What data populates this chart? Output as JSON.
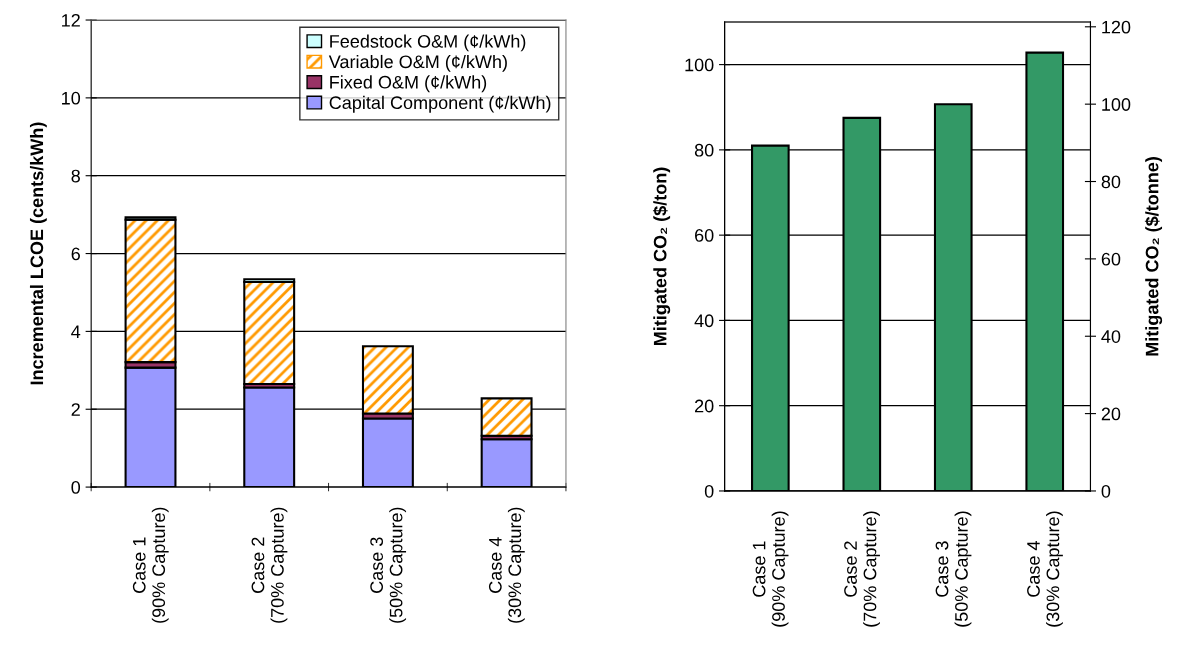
{
  "chart_data": [
    {
      "type": "bar",
      "stacked": true,
      "ylabel": "Incremental LCOE (cents/kWh)",
      "categories": [
        "Case 1\n(90% Capture)",
        "Case 2\n(70% Capture)",
        "Case 3\n(50% Capture)",
        "Case 4\n(30% Capture)"
      ],
      "series": [
        {
          "name": "Capital Component (¢/kWh)",
          "color": "#9999ff",
          "values": [
            3.07,
            2.56,
            1.76,
            1.23
          ]
        },
        {
          "name": "Fixed O&M (¢/kWh)",
          "color": "#993366",
          "values": [
            0.14,
            0.09,
            0.13,
            0.09
          ]
        },
        {
          "name": "Variable O&M (¢/kWh)",
          "color": "#ff9900",
          "values": [
            3.66,
            2.62,
            1.73,
            0.96
          ]
        },
        {
          "name": "Feedstock O&M (¢/kWh)",
          "color": "#ccffff",
          "values": [
            0.06,
            0.07,
            null,
            null
          ]
        }
      ],
      "ylim": [
        0,
        12
      ],
      "yticks": [
        0,
        2,
        4,
        6,
        8,
        10,
        12
      ],
      "grid": "y",
      "legend": "top right"
    },
    {
      "type": "bar",
      "ylabel": "Mitigated CO₂ ($/ton)",
      "y2label": "Mitigated CO₂ ($/tonne)",
      "categories": [
        "Case 1\n(90% Capture)",
        "Case 2\n(70% Capture)",
        "Case 3\n(50% Capture)",
        "Case 4\n(30% Capture)"
      ],
      "series": [
        {
          "color": "#339966",
          "values": [
            81.0,
            87.5,
            90.7,
            102.8
          ]
        }
      ],
      "ylim": [
        0,
        110
      ],
      "yticks": [
        0,
        20,
        40,
        60,
        80,
        100
      ],
      "y2lim": [
        0,
        121.25
      ],
      "y2ticks": [
        0,
        20,
        40,
        60,
        80,
        100,
        120
      ],
      "grid": "y"
    }
  ]
}
